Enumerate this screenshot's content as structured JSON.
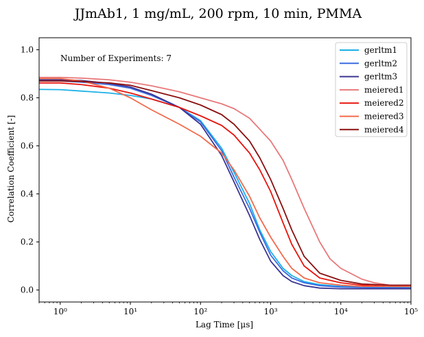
{
  "chart_data": {
    "type": "line",
    "title": "JJmAb1, 1 mg/mL, 200 rpm, 10 min, PMMA",
    "xlabel": "Lag Time [μs]",
    "ylabel": "Correlation Coefficient [-]",
    "x_scale": "log",
    "xlim": [
      0.5,
      100000
    ],
    "ylim": [
      -0.05,
      1.05
    ],
    "x_ticks": [
      {
        "value": 1,
        "label": "10⁰"
      },
      {
        "value": 10,
        "label": "10¹"
      },
      {
        "value": 100,
        "label": "10²"
      },
      {
        "value": 1000,
        "label": "10³"
      },
      {
        "value": 10000,
        "label": "10⁴"
      },
      {
        "value": 100000,
        "label": "10⁵"
      }
    ],
    "y_ticks": [
      0.0,
      0.2,
      0.4,
      0.6,
      0.8,
      1.0
    ],
    "y_tick_labels": [
      "0.0",
      "0.2",
      "0.4",
      "0.6",
      "0.8",
      "1.0"
    ],
    "annotation": "Number of Experiments: 7",
    "legend_position": "top-right",
    "grid": false,
    "series": [
      {
        "name": "gerltm1",
        "color": "#1ab0e8",
        "x": [
          0.5,
          1,
          2,
          5,
          10,
          20,
          50,
          100,
          200,
          300,
          500,
          700,
          1000,
          1500,
          2000,
          3000,
          5000,
          10000,
          20000,
          100000
        ],
        "y": [
          0.835,
          0.834,
          0.828,
          0.82,
          0.81,
          0.795,
          0.76,
          0.705,
          0.59,
          0.49,
          0.36,
          0.25,
          0.16,
          0.09,
          0.06,
          0.035,
          0.022,
          0.015,
          0.012,
          0.01
        ]
      },
      {
        "name": "gerltm2",
        "color": "#3a6be0",
        "x": [
          0.5,
          1,
          2,
          5,
          10,
          20,
          50,
          100,
          200,
          300,
          500,
          700,
          1000,
          1500,
          2000,
          3000,
          5000,
          10000,
          20000,
          100000
        ],
        "y": [
          0.87,
          0.87,
          0.865,
          0.855,
          0.84,
          0.81,
          0.76,
          0.7,
          0.58,
          0.47,
          0.34,
          0.24,
          0.145,
          0.08,
          0.05,
          0.03,
          0.018,
          0.012,
          0.01,
          0.008
        ]
      },
      {
        "name": "gerltm3",
        "color": "#3b3591",
        "x": [
          0.5,
          1,
          2,
          5,
          10,
          20,
          50,
          100,
          200,
          300,
          500,
          700,
          1000,
          1500,
          2000,
          3000,
          5000,
          10000,
          20000,
          100000
        ],
        "y": [
          0.875,
          0.875,
          0.872,
          0.86,
          0.845,
          0.815,
          0.76,
          0.69,
          0.56,
          0.45,
          0.31,
          0.21,
          0.12,
          0.06,
          0.035,
          0.018,
          0.008,
          0.005,
          0.005,
          0.005
        ]
      },
      {
        "name": "meiered1",
        "color": "#e8787a",
        "x": [
          0.5,
          1,
          2,
          5,
          10,
          20,
          50,
          100,
          200,
          300,
          500,
          1000,
          1500,
          2000,
          3000,
          5000,
          7000,
          10000,
          20000,
          30000,
          50000,
          100000
        ],
        "y": [
          0.885,
          0.885,
          0.882,
          0.875,
          0.865,
          0.85,
          0.825,
          0.8,
          0.775,
          0.755,
          0.715,
          0.62,
          0.54,
          0.46,
          0.34,
          0.2,
          0.13,
          0.09,
          0.045,
          0.03,
          0.02,
          0.015
        ]
      },
      {
        "name": "meiered2",
        "color": "#e8140c",
        "x": [
          0.5,
          1,
          2,
          5,
          10,
          20,
          50,
          100,
          200,
          300,
          500,
          700,
          1000,
          1500,
          2000,
          3000,
          5000,
          10000,
          20000,
          50000,
          100000
        ],
        "y": [
          0.862,
          0.862,
          0.855,
          0.84,
          0.82,
          0.795,
          0.76,
          0.725,
          0.685,
          0.645,
          0.57,
          0.5,
          0.41,
          0.28,
          0.19,
          0.1,
          0.05,
          0.03,
          0.02,
          0.015,
          0.015
        ]
      },
      {
        "name": "meiered3",
        "color": "#f26a4b",
        "x": [
          0.5,
          1,
          2,
          5,
          10,
          20,
          50,
          100,
          200,
          300,
          500,
          700,
          1000,
          1500,
          2000,
          3000,
          5000,
          10000,
          20000,
          50000,
          100000
        ],
        "y": [
          0.88,
          0.88,
          0.87,
          0.84,
          0.8,
          0.75,
          0.69,
          0.64,
          0.57,
          0.5,
          0.39,
          0.3,
          0.22,
          0.14,
          0.09,
          0.05,
          0.03,
          0.02,
          0.015,
          0.015,
          0.015
        ]
      },
      {
        "name": "meiered4",
        "color": "#8a0f0f",
        "x": [
          0.5,
          1,
          2,
          5,
          10,
          20,
          50,
          100,
          200,
          300,
          500,
          700,
          1000,
          1500,
          2000,
          3000,
          5000,
          10000,
          20000,
          50000,
          100000
        ],
        "y": [
          0.87,
          0.87,
          0.868,
          0.862,
          0.852,
          0.83,
          0.8,
          0.77,
          0.73,
          0.69,
          0.62,
          0.55,
          0.46,
          0.34,
          0.25,
          0.14,
          0.07,
          0.04,
          0.025,
          0.02,
          0.02
        ]
      }
    ]
  }
}
